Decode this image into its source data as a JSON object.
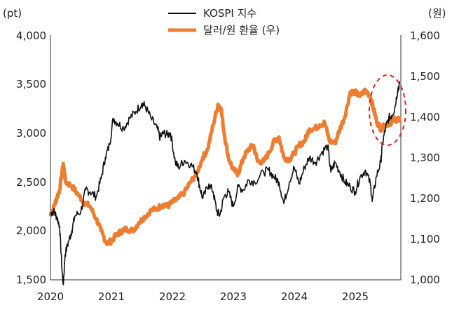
{
  "chart_data": {
    "type": "line",
    "title": "",
    "left_unit": "(pt)",
    "right_unit": "(원)",
    "x_ticks": [
      "2020",
      "2021",
      "2022",
      "2023",
      "2024",
      "2025"
    ],
    "xlim": [
      2020.0,
      2025.75
    ],
    "left_axis": {
      "ylim": [
        1500,
        4000
      ],
      "ticks": [
        "1,500",
        "2,000",
        "2,500",
        "3,000",
        "3,500",
        "4,000"
      ]
    },
    "right_axis": {
      "ylim": [
        1000,
        1600
      ],
      "ticks": [
        "1,000",
        "1,100",
        "1,200",
        "1,300",
        "1,400",
        "1,500",
        "1,600"
      ]
    },
    "series": [
      {
        "name": "KOSPI 지수",
        "axis": "left",
        "color": "#111111",
        "points": [
          [
            2020.0,
            2180
          ],
          [
            2020.05,
            2200
          ],
          [
            2020.1,
            2150
          ],
          [
            2020.15,
            2050
          ],
          [
            2020.19,
            1600
          ],
          [
            2020.21,
            1450
          ],
          [
            2020.24,
            1760
          ],
          [
            2020.3,
            1900
          ],
          [
            2020.35,
            2000
          ],
          [
            2020.4,
            2150
          ],
          [
            2020.5,
            2200
          ],
          [
            2020.58,
            2420
          ],
          [
            2020.65,
            2400
          ],
          [
            2020.75,
            2350
          ],
          [
            2020.83,
            2530
          ],
          [
            2020.9,
            2750
          ],
          [
            2020.97,
            2880
          ],
          [
            2021.03,
            3150
          ],
          [
            2021.1,
            3100
          ],
          [
            2021.2,
            3050
          ],
          [
            2021.3,
            3150
          ],
          [
            2021.4,
            3220
          ],
          [
            2021.5,
            3300
          ],
          [
            2021.55,
            3280
          ],
          [
            2021.65,
            3150
          ],
          [
            2021.75,
            3050
          ],
          [
            2021.8,
            2950
          ],
          [
            2021.85,
            3000
          ],
          [
            2021.92,
            2980
          ],
          [
            2021.97,
            3000
          ],
          [
            2022.05,
            2700
          ],
          [
            2022.1,
            2650
          ],
          [
            2022.2,
            2720
          ],
          [
            2022.3,
            2680
          ],
          [
            2022.4,
            2600
          ],
          [
            2022.45,
            2450
          ],
          [
            2022.5,
            2330
          ],
          [
            2022.6,
            2480
          ],
          [
            2022.67,
            2400
          ],
          [
            2022.73,
            2200
          ],
          [
            2022.78,
            2160
          ],
          [
            2022.85,
            2350
          ],
          [
            2022.92,
            2400
          ],
          [
            2023.0,
            2250
          ],
          [
            2023.08,
            2450
          ],
          [
            2023.17,
            2420
          ],
          [
            2023.25,
            2520
          ],
          [
            2023.35,
            2500
          ],
          [
            2023.5,
            2600
          ],
          [
            2023.58,
            2620
          ],
          [
            2023.67,
            2550
          ],
          [
            2023.75,
            2500
          ],
          [
            2023.83,
            2280
          ],
          [
            2023.92,
            2500
          ],
          [
            2024.0,
            2650
          ],
          [
            2024.08,
            2480
          ],
          [
            2024.17,
            2650
          ],
          [
            2024.25,
            2750
          ],
          [
            2024.35,
            2700
          ],
          [
            2024.45,
            2800
          ],
          [
            2024.55,
            2870
          ],
          [
            2024.6,
            2600
          ],
          [
            2024.67,
            2700
          ],
          [
            2024.75,
            2600
          ],
          [
            2024.83,
            2500
          ],
          [
            2024.92,
            2450
          ],
          [
            2025.0,
            2400
          ],
          [
            2025.08,
            2550
          ],
          [
            2025.17,
            2620
          ],
          [
            2025.25,
            2480
          ],
          [
            2025.28,
            2300
          ],
          [
            2025.35,
            2560
          ],
          [
            2025.42,
            2700
          ],
          [
            2025.45,
            2900
          ],
          [
            2025.5,
            3050
          ],
          [
            2025.55,
            3150
          ],
          [
            2025.6,
            3180
          ],
          [
            2025.65,
            3250
          ],
          [
            2025.7,
            3450
          ],
          [
            2025.73,
            3500
          ]
        ]
      },
      {
        "name": "달러/원 환율 (우)",
        "axis": "right",
        "color": "#ED7D31",
        "points": [
          [
            2020.0,
            1160
          ],
          [
            2020.05,
            1175
          ],
          [
            2020.1,
            1200
          ],
          [
            2020.15,
            1220
          ],
          [
            2020.21,
            1285
          ],
          [
            2020.25,
            1240
          ],
          [
            2020.35,
            1230
          ],
          [
            2020.45,
            1210
          ],
          [
            2020.55,
            1190
          ],
          [
            2020.65,
            1180
          ],
          [
            2020.75,
            1150
          ],
          [
            2020.83,
            1120
          ],
          [
            2020.92,
            1090
          ],
          [
            2021.0,
            1095
          ],
          [
            2021.08,
            1110
          ],
          [
            2021.17,
            1120
          ],
          [
            2021.25,
            1125
          ],
          [
            2021.35,
            1120
          ],
          [
            2021.45,
            1140
          ],
          [
            2021.55,
            1155
          ],
          [
            2021.65,
            1170
          ],
          [
            2021.75,
            1175
          ],
          [
            2021.85,
            1185
          ],
          [
            2021.92,
            1180
          ],
          [
            2022.0,
            1190
          ],
          [
            2022.1,
            1200
          ],
          [
            2022.2,
            1215
          ],
          [
            2022.3,
            1240
          ],
          [
            2022.4,
            1260
          ],
          [
            2022.5,
            1300
          ],
          [
            2022.58,
            1320
          ],
          [
            2022.67,
            1380
          ],
          [
            2022.75,
            1430
          ],
          [
            2022.8,
            1420
          ],
          [
            2022.85,
            1360
          ],
          [
            2022.92,
            1300
          ],
          [
            2023.0,
            1270
          ],
          [
            2023.08,
            1260
          ],
          [
            2023.17,
            1300
          ],
          [
            2023.25,
            1320
          ],
          [
            2023.33,
            1330
          ],
          [
            2023.4,
            1290
          ],
          [
            2023.5,
            1290
          ],
          [
            2023.58,
            1310
          ],
          [
            2023.67,
            1340
          ],
          [
            2023.75,
            1350
          ],
          [
            2023.83,
            1300
          ],
          [
            2023.92,
            1295
          ],
          [
            2024.0,
            1310
          ],
          [
            2024.08,
            1330
          ],
          [
            2024.17,
            1340
          ],
          [
            2024.25,
            1370
          ],
          [
            2024.33,
            1370
          ],
          [
            2024.42,
            1380
          ],
          [
            2024.5,
            1385
          ],
          [
            2024.58,
            1340
          ],
          [
            2024.67,
            1335
          ],
          [
            2024.75,
            1370
          ],
          [
            2024.83,
            1400
          ],
          [
            2024.92,
            1460
          ],
          [
            2025.0,
            1460
          ],
          [
            2025.08,
            1450
          ],
          [
            2025.17,
            1465
          ],
          [
            2025.25,
            1450
          ],
          [
            2025.3,
            1420
          ],
          [
            2025.35,
            1390
          ],
          [
            2025.42,
            1370
          ],
          [
            2025.5,
            1380
          ],
          [
            2025.58,
            1385
          ],
          [
            2025.65,
            1395
          ],
          [
            2025.7,
            1390
          ],
          [
            2025.73,
            1395
          ]
        ]
      }
    ],
    "annotation": {
      "shape": "dashed-ellipse",
      "color": "#E02020",
      "label": ""
    }
  }
}
